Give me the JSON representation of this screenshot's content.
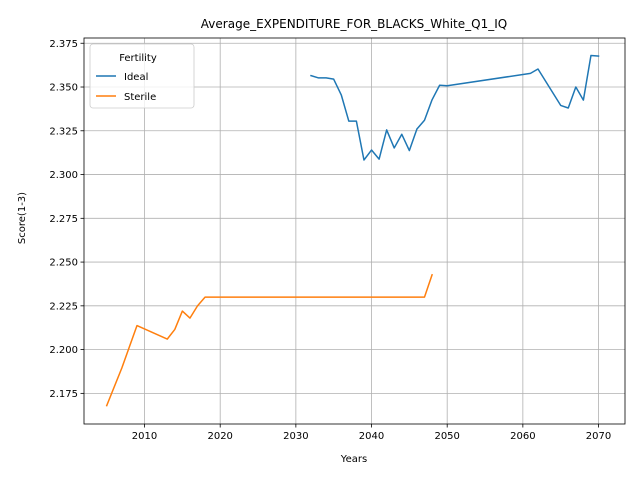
{
  "chart_data": {
    "type": "line",
    "title": "Average_EXPENDITURE_FOR_BLACKS_White_Q1_IQ",
    "xlabel": "Years",
    "ylabel": "Score(1-3)",
    "xlim": [
      2002,
      2073.5
    ],
    "ylim": [
      2.1575,
      2.378
    ],
    "grid": true,
    "xticks": [
      2010,
      2020,
      2030,
      2040,
      2050,
      2060,
      2070
    ],
    "yticks": [
      2.175,
      2.2,
      2.225,
      2.25,
      2.275,
      2.3,
      2.325,
      2.35,
      2.375
    ],
    "ytick_labels": [
      "2.175",
      "2.200",
      "2.225",
      "2.250",
      "2.275",
      "2.300",
      "2.325",
      "2.350",
      "2.375"
    ],
    "legend": {
      "title": "Fertility",
      "placement": "top-left"
    },
    "series": [
      {
        "name": "Ideal",
        "color": "#1f77b4",
        "x": [
          2032,
          2033,
          2034,
          2035,
          2036,
          2037,
          2038,
          2039,
          2040,
          2041,
          2042,
          2043,
          2044,
          2045,
          2046,
          2047,
          2048,
          2049,
          2050,
          2061,
          2062,
          2065,
          2066,
          2067,
          2068,
          2069,
          2070
        ],
        "y": [
          2.3565,
          2.3552,
          2.3552,
          2.3545,
          2.3455,
          2.3305,
          2.3305,
          2.3083,
          2.314,
          2.3088,
          2.3255,
          2.3152,
          2.323,
          2.3137,
          2.326,
          2.331,
          2.3427,
          2.351,
          2.3507,
          2.3578,
          2.3603,
          2.3395,
          2.338,
          2.35,
          2.3425,
          2.368,
          2.3677
        ]
      },
      {
        "name": "Sterile",
        "color": "#ff7f0e",
        "x": [
          2005,
          2007,
          2009,
          2013,
          2014,
          2015,
          2016,
          2017,
          2018,
          2047,
          2048
        ],
        "y": [
          2.168,
          2.1895,
          2.2137,
          2.206,
          2.2115,
          2.222,
          2.218,
          2.225,
          2.23,
          2.23,
          2.2427
        ]
      }
    ]
  }
}
